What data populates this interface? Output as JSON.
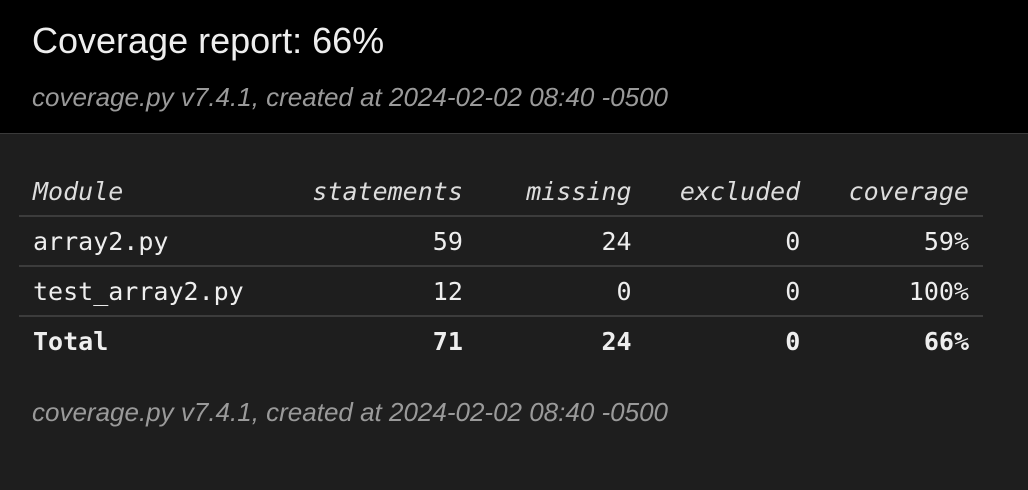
{
  "header": {
    "title": "Coverage report: 66%",
    "created": "coverage.py v7.4.1, created at 2024-02-02 08:40 -0500"
  },
  "table": {
    "columns": [
      "Module",
      "statements",
      "missing",
      "excluded",
      "coverage"
    ],
    "rows": [
      {
        "module": "array2.py",
        "statements": "59",
        "missing": "24",
        "excluded": "0",
        "coverage": "59%"
      },
      {
        "module": "test_array2.py",
        "statements": "12",
        "missing": "0",
        "excluded": "0",
        "coverage": "100%"
      }
    ],
    "total": {
      "module": "Total",
      "statements": "71",
      "missing": "24",
      "excluded": "0",
      "coverage": "66%"
    }
  },
  "footer": {
    "created": "coverage.py v7.4.1, created at 2024-02-02 08:40 -0500"
  }
}
